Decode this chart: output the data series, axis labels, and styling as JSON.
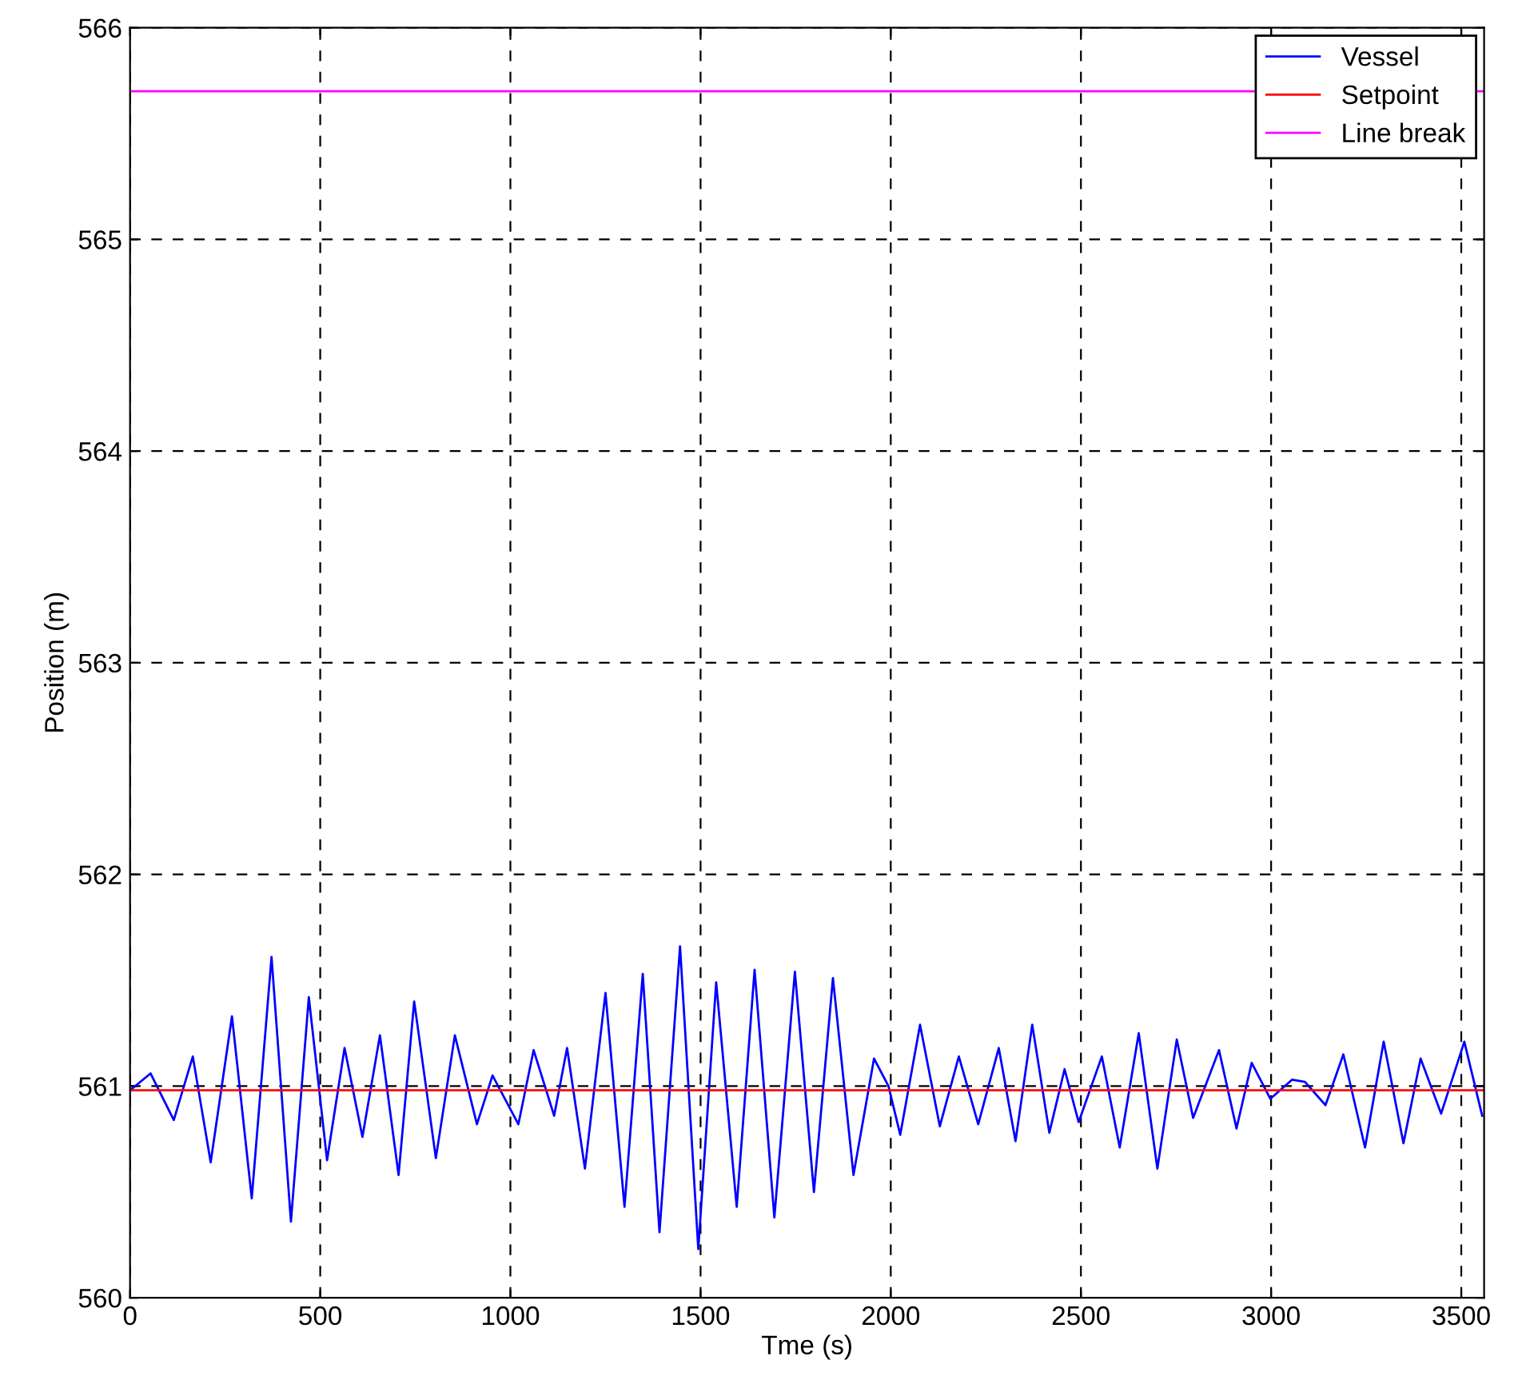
{
  "chart_data": {
    "type": "line",
    "xlabel": "Tme (s)",
    "ylabel": "Position (m)",
    "xlim": [
      0,
      3560
    ],
    "ylim": [
      560,
      566
    ],
    "xticks": [
      0,
      500,
      1000,
      1500,
      2000,
      2500,
      3000,
      3500
    ],
    "yticks": [
      560,
      561,
      562,
      563,
      564,
      565,
      566
    ],
    "grid": true,
    "legend": "top right",
    "series": [
      {
        "name": "Vessel",
        "color": "#0000ff",
        "x": [
          0,
          54,
          115,
          165,
          212,
          268,
          320,
          372,
          423,
          470,
          518,
          564,
          611,
          657,
          706,
          747,
          804,
          854,
          912,
          953,
          1021,
          1061,
          1115,
          1149,
          1196,
          1250,
          1300,
          1348,
          1392,
          1446,
          1494,
          1541,
          1595,
          1642,
          1694,
          1748,
          1798,
          1848,
          1902,
          1956,
          1994,
          2025,
          2077,
          2129,
          2179,
          2230,
          2284,
          2328,
          2372,
          2417,
          2457,
          2494,
          2555,
          2602,
          2652,
          2701,
          2752,
          2795,
          2863,
          2909,
          2949,
          2998,
          3055,
          3089,
          3143,
          3190,
          3247,
          3296,
          3348,
          3393,
          3447,
          3508,
          3555
        ],
        "values": [
          560.98,
          561.06,
          560.84,
          561.14,
          560.64,
          561.33,
          560.47,
          561.61,
          560.36,
          561.42,
          560.65,
          561.18,
          560.76,
          561.24,
          560.58,
          561.4,
          560.66,
          561.24,
          560.82,
          561.05,
          560.82,
          561.17,
          560.86,
          561.18,
          560.61,
          561.44,
          560.43,
          561.53,
          560.31,
          561.66,
          560.23,
          561.49,
          560.43,
          561.55,
          560.38,
          561.54,
          560.5,
          561.51,
          560.58,
          561.13,
          561.0,
          560.77,
          561.29,
          560.81,
          561.14,
          560.82,
          561.18,
          560.74,
          561.29,
          560.78,
          561.08,
          560.83,
          561.14,
          560.71,
          561.25,
          560.61,
          561.22,
          560.85,
          561.17,
          560.8,
          561.11,
          560.94,
          561.03,
          561.02,
          560.91,
          561.15,
          560.71,
          561.21,
          560.73,
          561.13,
          560.87,
          561.21,
          560.86
        ]
      },
      {
        "name": "Setpoint",
        "color": "#ff0000",
        "x": [
          0,
          3560
        ],
        "values": [
          560.98,
          560.98
        ]
      },
      {
        "name": "Line break",
        "color": "#ff00ff",
        "x": [
          0,
          3560
        ],
        "values": [
          565.7,
          565.7
        ]
      }
    ]
  }
}
